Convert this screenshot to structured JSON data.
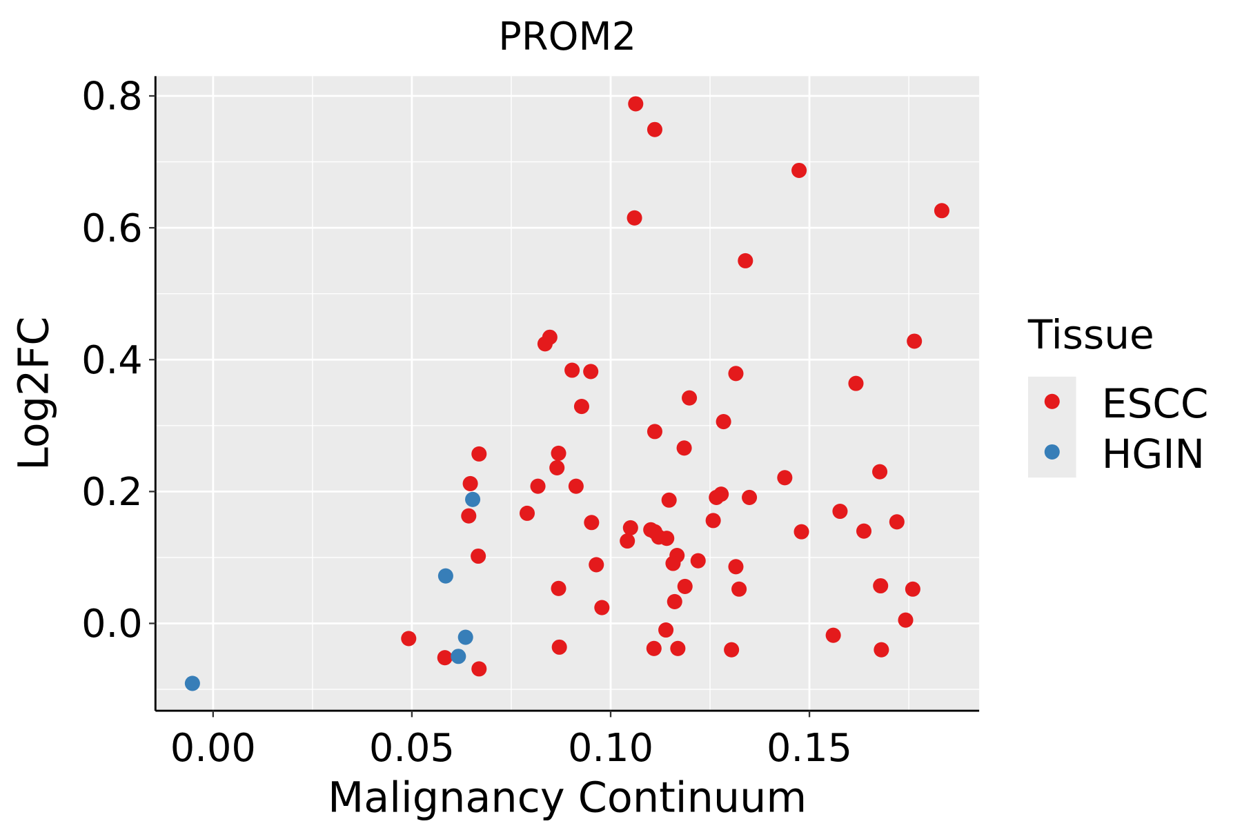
{
  "chart_data": {
    "type": "scatter",
    "title": "PROM2",
    "xlabel": "Malignancy Continuum",
    "ylabel": "Log2FC",
    "xlim": [
      -0.0145,
      0.1927
    ],
    "ylim": [
      -0.1325,
      0.83
    ],
    "x_ticks": [
      0.0,
      0.05,
      0.1,
      0.15
    ],
    "x_tick_labels": [
      "0.00",
      "0.05",
      "0.10",
      "0.15"
    ],
    "y_ticks": [
      0.0,
      0.2,
      0.4,
      0.6,
      0.8
    ],
    "y_tick_labels": [
      "0.0",
      "0.2",
      "0.4",
      "0.6",
      "0.8"
    ],
    "grid": true,
    "legend": {
      "title": "Tissue",
      "placement": "right",
      "entries": [
        {
          "label": "ESCC",
          "color": "#E41A1C"
        },
        {
          "label": "HGIN",
          "color": "#377EB8"
        }
      ]
    },
    "series": [
      {
        "name": "ESCC",
        "color": "#E41A1C",
        "points": [
          [
            0.0492,
            -0.023
          ],
          [
            0.0583,
            -0.052
          ],
          [
            0.0669,
            -0.069
          ],
          [
            0.0647,
            0.212
          ],
          [
            0.0643,
            0.163
          ],
          [
            0.0669,
            0.257
          ],
          [
            0.0667,
            0.102
          ],
          [
            0.079,
            0.167
          ],
          [
            0.0817,
            0.208
          ],
          [
            0.0835,
            0.424
          ],
          [
            0.0847,
            0.434
          ],
          [
            0.0869,
            0.258
          ],
          [
            0.0865,
            0.236
          ],
          [
            0.0869,
            0.053
          ],
          [
            0.0871,
            -0.036
          ],
          [
            0.0903,
            0.384
          ],
          [
            0.095,
            0.382
          ],
          [
            0.0927,
            0.329
          ],
          [
            0.0913,
            0.208
          ],
          [
            0.0952,
            0.153
          ],
          [
            0.0964,
            0.089
          ],
          [
            0.0978,
            0.024
          ],
          [
            0.1063,
            0.788
          ],
          [
            0.1111,
            0.749
          ],
          [
            0.106,
            0.615
          ],
          [
            0.1042,
            0.125
          ],
          [
            0.105,
            0.145
          ],
          [
            0.1101,
            0.142
          ],
          [
            0.1111,
            0.139
          ],
          [
            0.1121,
            0.131
          ],
          [
            0.1141,
            0.129
          ],
          [
            0.1111,
            0.291
          ],
          [
            0.1147,
            0.187
          ],
          [
            0.1167,
            0.103
          ],
          [
            0.1157,
            0.091
          ],
          [
            0.1185,
            0.266
          ],
          [
            0.1198,
            0.342
          ],
          [
            0.1187,
            0.056
          ],
          [
            0.1161,
            0.033
          ],
          [
            0.1139,
            -0.01
          ],
          [
            0.1109,
            -0.038
          ],
          [
            0.1169,
            -0.038
          ],
          [
            0.122,
            0.095
          ],
          [
            0.1258,
            0.156
          ],
          [
            0.1266,
            0.191
          ],
          [
            0.1278,
            0.196
          ],
          [
            0.1284,
            0.306
          ],
          [
            0.1315,
            0.379
          ],
          [
            0.1339,
            0.55
          ],
          [
            0.1349,
            0.191
          ],
          [
            0.1315,
            0.086
          ],
          [
            0.1323,
            0.052
          ],
          [
            0.1304,
            -0.04
          ],
          [
            0.1474,
            0.687
          ],
          [
            0.1438,
            0.221
          ],
          [
            0.148,
            0.139
          ],
          [
            0.156,
            -0.018
          ],
          [
            0.1577,
            0.17
          ],
          [
            0.1617,
            0.364
          ],
          [
            0.1637,
            0.14
          ],
          [
            0.1677,
            0.23
          ],
          [
            0.1679,
            0.057
          ],
          [
            0.1681,
            -0.04
          ],
          [
            0.172,
            0.154
          ],
          [
            0.1742,
            0.005
          ],
          [
            0.176,
            0.052
          ],
          [
            0.1764,
            0.428
          ],
          [
            0.1833,
            0.626
          ]
        ]
      },
      {
        "name": "HGIN",
        "color": "#377EB8",
        "points": [
          [
            -0.0052,
            -0.091
          ],
          [
            0.0585,
            0.072
          ],
          [
            0.0635,
            -0.021
          ],
          [
            0.0617,
            -0.05
          ],
          [
            0.0653,
            0.188
          ]
        ]
      }
    ]
  }
}
